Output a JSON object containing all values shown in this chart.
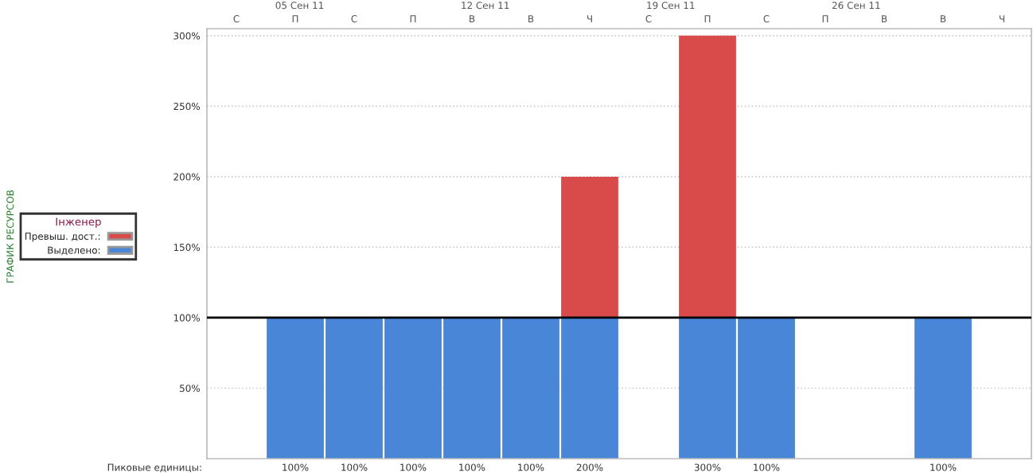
{
  "chart_data": {
    "type": "bar",
    "stacked": true,
    "categories": [
      "С",
      "П",
      "С",
      "П",
      "В",
      "В",
      "Ч",
      "С",
      "П",
      "С",
      "П",
      "В",
      "В",
      "Ч"
    ],
    "series": [
      {
        "name": "Выделено:",
        "color": "#4a86d8",
        "values": [
          null,
          100,
          100,
          100,
          100,
          100,
          100,
          null,
          100,
          100,
          null,
          null,
          100,
          null
        ]
      },
      {
        "name": "Превыш. дост.:",
        "color": "#d94a4a",
        "values": [
          null,
          null,
          null,
          null,
          null,
          null,
          100,
          null,
          200,
          null,
          null,
          null,
          null,
          null
        ]
      }
    ],
    "legend_title": "Інженер",
    "legend": "left",
    "ylim": [
      0,
      305
    ],
    "yticks": [
      {
        "value": 50,
        "label": "50%"
      },
      {
        "value": 100,
        "label": "100%"
      },
      {
        "value": 150,
        "label": "150%"
      },
      {
        "value": 200,
        "label": "200%"
      },
      {
        "value": 250,
        "label": "250%"
      },
      {
        "value": 300,
        "label": "300%"
      }
    ],
    "ref_lines": [
      {
        "axis": "y",
        "value": 100,
        "label": null,
        "color": "#000000"
      }
    ],
    "grid": "y",
    "totals": [
      null,
      "100%",
      "100%",
      "100%",
      "100%",
      "100%",
      "200%",
      null,
      "300%",
      "100%",
      null,
      null,
      "100%",
      null
    ],
    "annotations": [
      "Пиковые единицы:",
      "ГРАФИК РЕСУРСОВ",
      "05 Сен 11",
      "12 Сен 11",
      "19 Сен 11",
      "26 Сен 11"
    ]
  }
}
